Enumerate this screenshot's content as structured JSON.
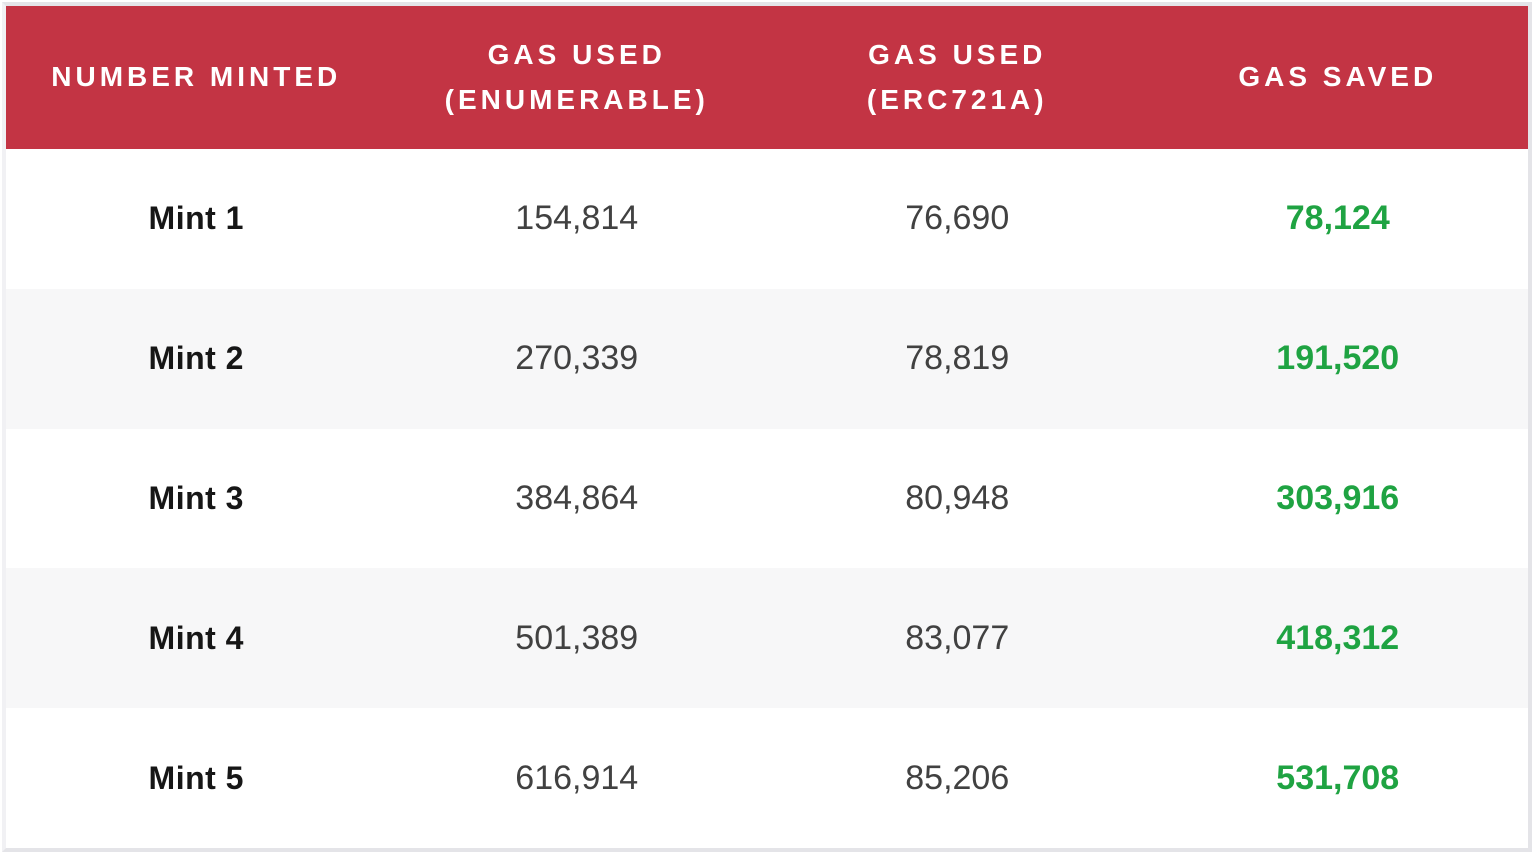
{
  "colors": {
    "header_background": "#c33444",
    "header_text": "#ffffff",
    "gas_saved_text": "#1fa342",
    "row_alt_background": "#f7f7f8",
    "row_background": "#ffffff",
    "value_text": "#414141",
    "mint_label_text": "#161616",
    "outer_border": "#e4e4e8"
  },
  "chart_data": {
    "type": "table",
    "title": "",
    "columns": [
      "NUMBER MINTED",
      "GAS USED (ENUMERABLE)",
      "GAS USED (ERC721A)",
      "GAS SAVED"
    ],
    "rows": [
      [
        "Mint 1",
        "154,814",
        "76,690",
        "78,124"
      ],
      [
        "Mint 2",
        "270,339",
        "78,819",
        "191,520"
      ],
      [
        "Mint 3",
        "384,864",
        "80,948",
        "303,916"
      ],
      [
        "Mint 4",
        "501,389",
        "83,077",
        "418,312"
      ],
      [
        "Mint 5",
        "616,914",
        "85,206",
        "531,708"
      ]
    ],
    "numeric": {
      "number_minted": [
        1,
        2,
        3,
        4,
        5
      ],
      "gas_used_enumerable": [
        154814,
        270339,
        384864,
        501389,
        616914
      ],
      "gas_used_erc721a": [
        76690,
        78819,
        80948,
        83077,
        85206
      ],
      "gas_saved": [
        78124,
        191520,
        303916,
        418312,
        531708
      ]
    },
    "layout_hints": {
      "header_style": "red banner, white bold uppercase text, two-line wrapped headers",
      "stripes": "rows alternate white and very light gray",
      "gas_saved_column": "bold green values"
    }
  }
}
